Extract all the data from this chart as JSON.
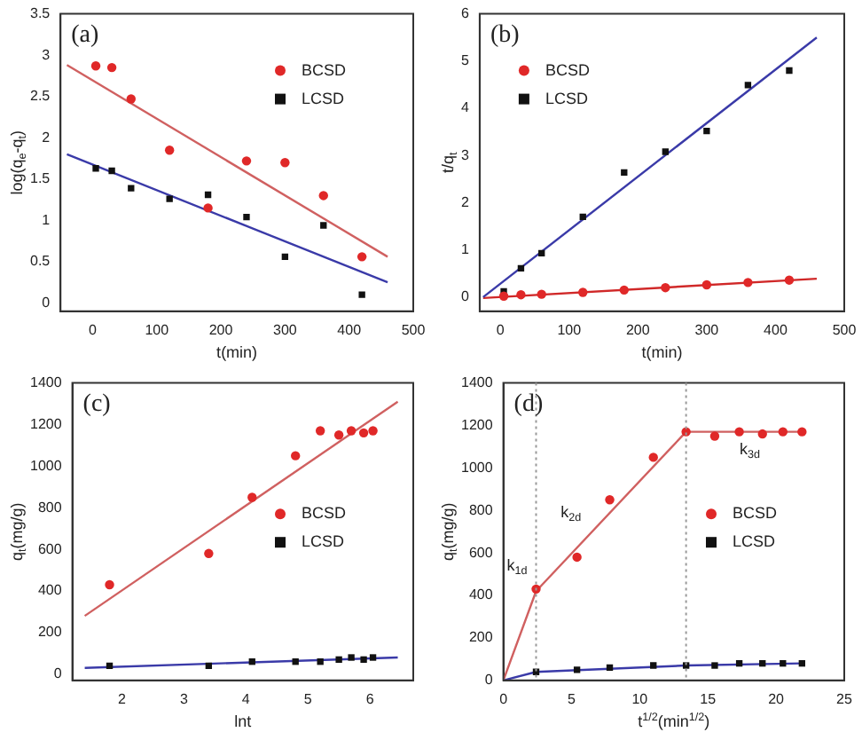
{
  "chart_data": [
    {
      "type": "scatter",
      "title": "(a)",
      "xlabel": "t(min)",
      "ylabel": "log(q$_{e}$-q$_{t}$)",
      "x": [
        5,
        30,
        60,
        120,
        180,
        240,
        300,
        360,
        420
      ],
      "xlim": [
        -50,
        500
      ],
      "xticks": [
        0,
        100,
        200,
        300,
        400,
        500
      ],
      "ylim": [
        -0.1,
        3.5
      ],
      "yticks": [
        0,
        0.5,
        1,
        1.5,
        2,
        2.5,
        3,
        3.5
      ],
      "grid": false,
      "legend": "top right",
      "series": [
        {
          "name": "BCSD",
          "color": "#e02828",
          "marker": "circle",
          "values": [
            2.87,
            2.85,
            2.47,
            1.85,
            1.15,
            1.72,
            1.7,
            1.3,
            0.56
          ]
        },
        {
          "name": "LCSD",
          "color": "#111111",
          "marker": "square",
          "values": [
            1.63,
            1.6,
            1.39,
            1.26,
            1.31,
            1.04,
            0.56,
            0.94,
            0.1
          ]
        },
        {
          "type": "line",
          "color": "#d06060",
          "marker": "none",
          "x": [
            -40,
            460
          ],
          "values": [
            2.88,
            0.56
          ]
        },
        {
          "type": "line",
          "color": "#3a3aa8",
          "marker": "none",
          "x": [
            -40,
            460
          ],
          "values": [
            1.8,
            0.25
          ]
        }
      ]
    },
    {
      "type": "scatter",
      "title": "(b)",
      "xlabel": "t(min)",
      "ylabel": "t/q$_{t}$",
      "x": [
        5,
        30,
        60,
        120,
        180,
        240,
        300,
        360,
        420
      ],
      "xlim": [
        -30,
        500
      ],
      "xticks": [
        0,
        100,
        200,
        300,
        400,
        500
      ],
      "ylim": [
        -0.3,
        6
      ],
      "yticks": [
        0,
        1,
        2,
        3,
        4,
        5,
        6
      ],
      "grid": false,
      "legend": "top left",
      "series": [
        {
          "name": "BCSD",
          "color": "#e02828",
          "marker": "circle",
          "values": [
            0.02,
            0.05,
            0.06,
            0.1,
            0.15,
            0.2,
            0.26,
            0.31,
            0.36
          ]
        },
        {
          "name": "LCSD",
          "color": "#111111",
          "marker": "square",
          "values": [
            0.12,
            0.61,
            0.93,
            1.7,
            2.64,
            3.08,
            3.52,
            4.49,
            4.8
          ]
        },
        {
          "type": "line",
          "color": "#3a3aa8",
          "marker": "none",
          "x": [
            -25,
            460
          ],
          "values": [
            0,
            5.5
          ]
        },
        {
          "type": "line",
          "color": "#d02828",
          "marker": "none",
          "x": [
            -25,
            460
          ],
          "values": [
            -0.02,
            0.39
          ]
        }
      ]
    },
    {
      "type": "scatter",
      "title": "(c)",
      "xlabel": "lnt",
      "ylabel": "q$_{t}$(mg/g)",
      "x": [
        1.8,
        3.4,
        4.1,
        4.8,
        5.2,
        5.5,
        5.7,
        5.9,
        6.05
      ],
      "xlim": [
        1.2,
        6.7
      ],
      "xticks": [
        2,
        3,
        4,
        5,
        6
      ],
      "ylim": [
        -30,
        1400
      ],
      "yticks": [
        0,
        200,
        400,
        600,
        800,
        1000,
        1200,
        1400
      ],
      "grid": false,
      "legend": "right",
      "series": [
        {
          "name": "BCSD",
          "color": "#e02828",
          "marker": "circle",
          "values": [
            430,
            580,
            850,
            1050,
            1170,
            1150,
            1170,
            1160,
            1170
          ]
        },
        {
          "name": "LCSD",
          "color": "#111111",
          "marker": "square",
          "values": [
            40,
            40,
            60,
            60,
            60,
            70,
            80,
            70,
            80
          ]
        },
        {
          "type": "line",
          "color": "#d06060",
          "marker": "none",
          "x": [
            1.4,
            6.45
          ],
          "values": [
            280,
            1310
          ]
        },
        {
          "type": "line",
          "color": "#3a3aa8",
          "marker": "none",
          "x": [
            1.4,
            6.45
          ],
          "values": [
            30,
            80
          ]
        }
      ]
    },
    {
      "type": "scatter",
      "title": "(d)",
      "xlabel": "t$^{1/2}$(min$^{1/2}$)",
      "ylabel": "q$_{t}$(mg/g)",
      "x": [
        2.4,
        5.4,
        7.8,
        11,
        13.4,
        15.5,
        17.3,
        19,
        20.5,
        21.9
      ],
      "xlim": [
        0,
        25
      ],
      "xticks": [
        0,
        5,
        10,
        15,
        20,
        25
      ],
      "ylim": [
        0,
        1400
      ],
      "yticks": [
        0,
        200,
        400,
        600,
        800,
        1000,
        1200,
        1400
      ],
      "grid": false,
      "legend": "right",
      "series": [
        {
          "name": "BCSD",
          "color": "#e02828",
          "marker": "circle",
          "values": [
            430,
            580,
            850,
            1050,
            1170,
            1150,
            1170,
            1160,
            1170,
            1170
          ]
        },
        {
          "name": "LCSD",
          "color": "#111111",
          "marker": "square",
          "values": [
            40,
            50,
            60,
            70,
            70,
            70,
            80,
            80,
            80,
            80
          ]
        },
        {
          "type": "line",
          "color": "#d06060",
          "marker": "none",
          "x": [
            0,
            2.4,
            13.4,
            21.9
          ],
          "values": [
            0,
            420,
            1170,
            1170
          ]
        },
        {
          "type": "line",
          "color": "#3a3aa8",
          "marker": "none",
          "x": [
            0,
            2.4,
            13.4,
            21.9
          ],
          "values": [
            0,
            40,
            70,
            80
          ]
        }
      ],
      "ref_lines": [
        {
          "axis": "x",
          "value": 2.4,
          "color": "#999999",
          "line_style": "dotted"
        },
        {
          "axis": "x",
          "value": 13.4,
          "color": "#999999",
          "line_style": "dotted"
        }
      ],
      "annotations": [
        "k$_{1d}$",
        "k$_{2d}$",
        "k$_{3d}$"
      ]
    }
  ]
}
